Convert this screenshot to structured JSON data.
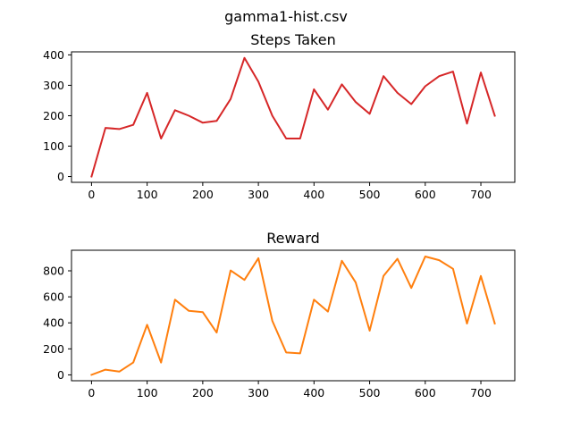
{
  "figure": {
    "suptitle": "gamma1-hist.csv"
  },
  "chart_data": [
    {
      "type": "line",
      "title": "Steps Taken",
      "xlabel": "",
      "ylabel": "",
      "xlim": [
        -36,
        761
      ],
      "ylim": [
        -19,
        410
      ],
      "xticks": [
        0,
        100,
        200,
        300,
        400,
        500,
        600,
        700
      ],
      "yticks": [
        0,
        100,
        200,
        300,
        400
      ],
      "grid": false,
      "color": "#d62728",
      "x": [
        0,
        25,
        50,
        75,
        100,
        125,
        150,
        175,
        200,
        225,
        250,
        275,
        300,
        325,
        350,
        375,
        400,
        425,
        450,
        475,
        500,
        525,
        550,
        575,
        600,
        625,
        650,
        675,
        700,
        725
      ],
      "y": [
        0,
        160,
        156,
        170,
        275,
        125,
        218,
        200,
        177,
        183,
        255,
        390,
        312,
        200,
        125,
        125,
        287,
        220,
        303,
        245,
        206,
        330,
        275,
        238,
        297,
        330,
        345,
        174,
        342,
        200
      ]
    },
    {
      "type": "line",
      "title": "Reward",
      "xlabel": "",
      "ylabel": "",
      "xlim": [
        -36,
        761
      ],
      "ylim": [
        -45,
        958
      ],
      "xticks": [
        0,
        100,
        200,
        300,
        400,
        500,
        600,
        700
      ],
      "yticks": [
        0,
        200,
        400,
        600,
        800
      ],
      "grid": false,
      "color": "#ff7f0e",
      "x": [
        0,
        25,
        50,
        75,
        100,
        125,
        150,
        175,
        200,
        225,
        250,
        275,
        300,
        325,
        350,
        375,
        400,
        425,
        450,
        475,
        500,
        525,
        550,
        575,
        600,
        625,
        650,
        675,
        700,
        725
      ],
      "y": [
        0,
        40,
        25,
        95,
        385,
        95,
        578,
        492,
        482,
        325,
        803,
        730,
        897,
        415,
        172,
        165,
        578,
        487,
        877,
        710,
        340,
        760,
        893,
        668,
        910,
        882,
        815,
        395,
        760,
        395
      ]
    }
  ]
}
